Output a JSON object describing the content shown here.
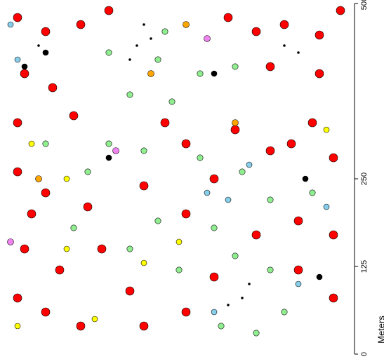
{
  "chart_data": {
    "type": "scatter",
    "y_label": "Meters",
    "xlim": [
      0,
      500
    ],
    "ylim": [
      0,
      500
    ],
    "yticks": [
      0,
      125,
      250,
      500
    ],
    "series": [
      {
        "color": "#ff0000",
        "x": [
          20,
          60,
          110,
          150,
          320,
          360,
          400,
          450,
          480,
          30,
          70,
          20,
          100,
          230,
          260,
          330,
          380,
          410,
          440,
          470,
          20,
          60,
          40,
          120,
          200,
          260,
          300,
          420,
          470,
          30,
          80,
          20,
          60,
          110,
          180,
          200,
          260,
          300,
          420,
          470,
          140,
          360,
          450,
          380
        ],
        "y": [
          480,
          460,
          470,
          490,
          480,
          460,
          470,
          455,
          490,
          400,
          380,
          330,
          340,
          330,
          300,
          320,
          290,
          300,
          330,
          280,
          260,
          230,
          200,
          210,
          240,
          200,
          250,
          190,
          170,
          150,
          120,
          80,
          60,
          40,
          90,
          40,
          60,
          110,
          120,
          80,
          150,
          170,
          400,
          410
        ]
      },
      {
        "color": "#90ee90",
        "x": [
          150,
          220,
          280,
          330,
          180,
          240,
          150,
          200,
          340,
          280,
          120,
          220,
          180,
          300,
          330,
          380,
          250,
          100,
          310,
          360,
          400,
          230,
          60,
          440,
          380
        ],
        "y": [
          430,
          420,
          400,
          410,
          370,
          360,
          300,
          290,
          260,
          280,
          260,
          190,
          150,
          180,
          140,
          120,
          120,
          180,
          40,
          30,
          60,
          460,
          300,
          230,
          220
        ]
      },
      {
        "color": "#ffff00",
        "x": [
          40,
          90,
          130,
          20,
          250,
          460,
          90,
          200
        ],
        "y": [
          300,
          150,
          50,
          40,
          160,
          320,
          250,
          130
        ]
      },
      {
        "color": "#000000",
        "x": [
          30,
          60,
          430,
          450,
          150,
          300
        ],
        "y": [
          410,
          430,
          250,
          110,
          280,
          400
        ]
      },
      {
        "color": "#87ceeb",
        "x": [
          20,
          10,
          290,
          320,
          420,
          460,
          300,
          350
        ],
        "y": [
          420,
          470,
          230,
          220,
          100,
          210,
          60,
          270
        ]
      },
      {
        "color": "#ffa500",
        "x": [
          210,
          50,
          260,
          330
        ],
        "y": [
          400,
          250,
          470,
          330
        ]
      },
      {
        "color": "#ee82ee",
        "x": [
          290,
          160,
          10
        ],
        "y": [
          450,
          290,
          160
        ]
      },
      {
        "color": "#000000",
        "x": [
          200,
          190,
          210,
          180,
          340,
          320,
          350,
          400,
          420,
          50
        ],
        "y": [
          470,
          440,
          450,
          420,
          80,
          70,
          100,
          440,
          430,
          440
        ]
      }
    ]
  }
}
